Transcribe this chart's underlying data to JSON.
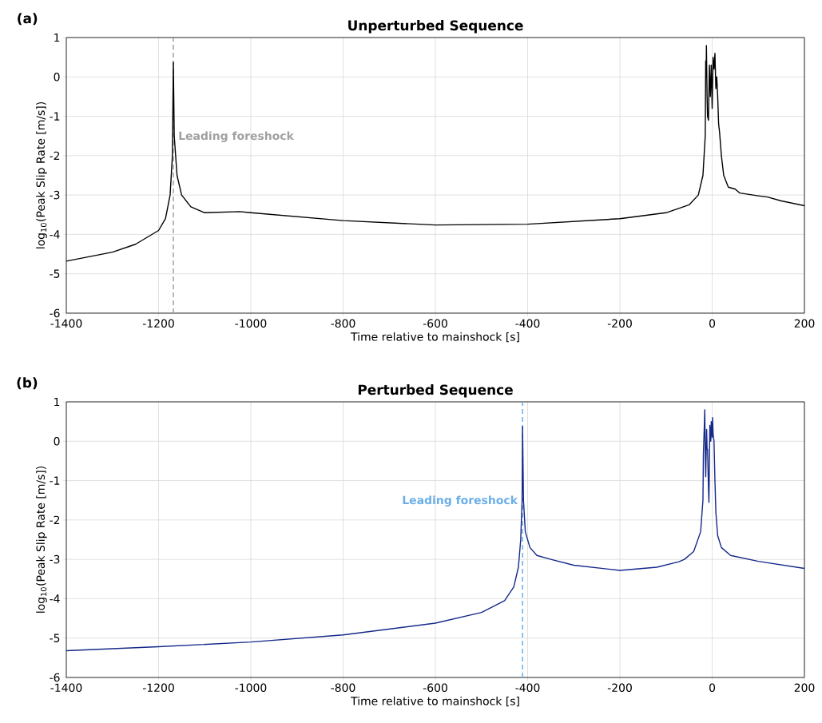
{
  "chart_data": [
    {
      "type": "line",
      "title": "Unperturbed Sequence",
      "xlabel": "Time relative to mainshock [s]",
      "ylabel": "log$_{10}$(Peak Slip Rate [m/s])",
      "annotations": [
        "(a)"
      ],
      "xlim": [
        -1400,
        200
      ],
      "ylim": [
        -6,
        1
      ],
      "xticks": [
        -1400,
        -1200,
        -1000,
        -800,
        -600,
        -400,
        -200,
        0,
        200
      ],
      "yticks": [
        -6,
        -5,
        -4,
        -3,
        -2,
        -1,
        0,
        1
      ],
      "grid": true,
      "ref_lines": [
        {
          "axis": "x",
          "value": -1168,
          "label": "Leading foreshock",
          "color": "#a0a0a0",
          "line_style": "dashed"
        }
      ],
      "series": [
        {
          "color": "#000000",
          "x": [
            -1400,
            -1300,
            -1250,
            -1200,
            -1185,
            -1175,
            -1170,
            -1168,
            -1166,
            -1160,
            -1150,
            -1130,
            -1100,
            -1024,
            -1000,
            -800,
            -600,
            -400,
            -200,
            -100,
            -50,
            -30,
            -20,
            -15,
            -14,
            -13,
            -12.5,
            -11,
            -10,
            -8,
            -6,
            -4,
            -2,
            0,
            2,
            4,
            6,
            8,
            10,
            12,
            14,
            16,
            20,
            25,
            35,
            50,
            60,
            100,
            120,
            150,
            200
          ],
          "values": [
            -4.68,
            -4.45,
            -4.25,
            -3.9,
            -3.6,
            -3.0,
            -2.0,
            0.37,
            -1.5,
            -2.5,
            -3.0,
            -3.3,
            -3.45,
            -3.42,
            -3.45,
            -3.65,
            -3.76,
            -3.74,
            -3.6,
            -3.45,
            -3.25,
            -3.0,
            -2.5,
            -1.5,
            0.4,
            0.0,
            0.8,
            -0.5,
            -1.0,
            -1.1,
            0.3,
            -0.5,
            0.3,
            -0.8,
            0.5,
            0.2,
            0.6,
            -0.3,
            0.0,
            -0.5,
            -1.2,
            -1.4,
            -2.0,
            -2.5,
            -2.8,
            -2.85,
            -2.95,
            -3.02,
            -3.05,
            -3.15,
            -3.27
          ]
        }
      ]
    },
    {
      "type": "line",
      "title": "Perturbed Sequence",
      "xlabel": "Time relative to mainshock [s]",
      "ylabel": "log$_{10}$(Peak Slip Rate [m/s])",
      "annotations": [
        "(b)"
      ],
      "xlim": [
        -1400,
        200
      ],
      "ylim": [
        -6,
        1
      ],
      "xticks": [
        -1400,
        -1200,
        -1000,
        -800,
        -600,
        -400,
        -200,
        0,
        200
      ],
      "yticks": [
        -6,
        -5,
        -4,
        -3,
        -2,
        -1,
        0,
        1
      ],
      "grid": true,
      "ref_lines": [
        {
          "axis": "x",
          "value": -411,
          "label": "Leading foreshock",
          "color": "#6aaee8",
          "line_style": "dashed"
        }
      ],
      "series": [
        {
          "color": "#15298a",
          "x": [
            -1400,
            -1200,
            -1000,
            -800,
            -600,
            -500,
            -450,
            -430,
            -420,
            -415,
            -412,
            -411,
            -409,
            -405,
            -395,
            -380,
            -350,
            -300,
            -200,
            -120,
            -72,
            -60,
            -40,
            -25,
            -20,
            -19,
            -17,
            -16,
            -15,
            -14,
            -12,
            -11,
            -10,
            -8,
            -7,
            -6,
            -5,
            -3,
            -2,
            0,
            1,
            2,
            4,
            6,
            8,
            12,
            20,
            40,
            100,
            200
          ],
          "values": [
            -5.32,
            -5.22,
            -5.1,
            -4.92,
            -4.62,
            -4.35,
            -4.05,
            -3.7,
            -3.2,
            -2.5,
            -1.5,
            0.37,
            -1.5,
            -2.3,
            -2.7,
            -2.9,
            -3.0,
            -3.15,
            -3.28,
            -3.2,
            -3.06,
            -3.0,
            -2.8,
            -2.3,
            -1.5,
            -0.3,
            0.4,
            0.8,
            -0.3,
            -0.9,
            0.3,
            -0.2,
            -0.2,
            -1.2,
            -1.55,
            -0.5,
            0.4,
            0.0,
            0.5,
            0.1,
            0.6,
            0.2,
            0.0,
            -1.0,
            -1.8,
            -2.4,
            -2.7,
            -2.9,
            -3.05,
            -3.23
          ]
        }
      ]
    }
  ]
}
